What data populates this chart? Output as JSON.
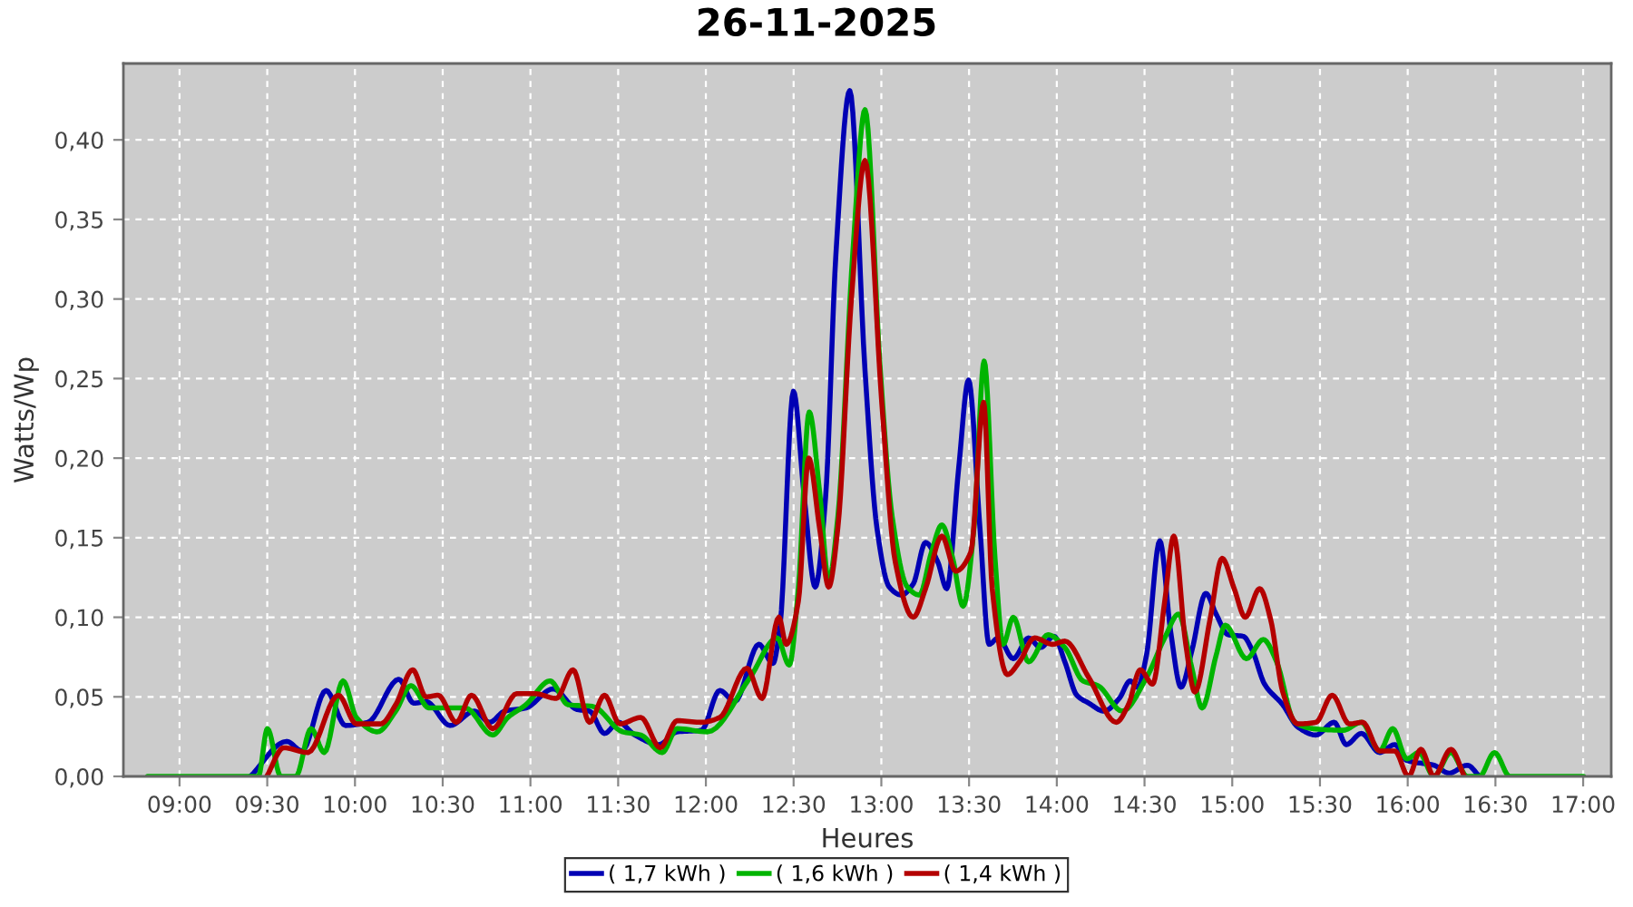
{
  "chart_data": {
    "type": "line",
    "title": "26-11-2025",
    "xlabel": "Heures",
    "ylabel": "Watts/Wp",
    "xlim": [
      8.68,
      17.16
    ],
    "xticks": [
      {
        "value": 9,
        "label": "09:00"
      },
      {
        "value": 9.5,
        "label": "09:30"
      },
      {
        "value": 10,
        "label": "10:00"
      },
      {
        "value": 10.5,
        "label": "10:30"
      },
      {
        "value": 11,
        "label": "11:00"
      },
      {
        "value": 11.5,
        "label": "11:30"
      },
      {
        "value": 12,
        "label": "12:00"
      },
      {
        "value": 12.5,
        "label": "12:30"
      },
      {
        "value": 13,
        "label": "13:00"
      },
      {
        "value": 13.5,
        "label": "13:30"
      },
      {
        "value": 14,
        "label": "14:00"
      },
      {
        "value": 14.5,
        "label": "14:30"
      },
      {
        "value": 15,
        "label": "15:00"
      },
      {
        "value": 15.5,
        "label": "15:30"
      },
      {
        "value": 16,
        "label": "16:00"
      },
      {
        "value": 16.5,
        "label": "16:30"
      },
      {
        "value": 17,
        "label": "17:00"
      }
    ],
    "ylim": [
      0,
      0.448
    ],
    "yticks": [
      {
        "value": 0,
        "label": "0,00"
      },
      {
        "value": 0.05,
        "label": "0,05"
      },
      {
        "value": 0.1,
        "label": "0,10"
      },
      {
        "value": 0.15,
        "label": "0,15"
      },
      {
        "value": 0.2,
        "label": "0,20"
      },
      {
        "value": 0.25,
        "label": "0,25"
      },
      {
        "value": 0.3,
        "label": "0,30"
      },
      {
        "value": 0.35,
        "label": "0,35"
      },
      {
        "value": 0.4,
        "label": "0,40"
      }
    ],
    "grid": true,
    "legend": "bottom",
    "marker": "none",
    "line_style": "solid",
    "series": [
      {
        "name": "( 1,7 kWh )",
        "color": "#0000b4",
        "x": [
          9.404,
          9.611,
          9.698,
          9.835,
          9.946,
          10.074,
          10.25,
          10.335,
          10.405,
          10.542,
          10.681,
          10.767,
          10.853,
          10.974,
          11.129,
          11.267,
          11.337,
          11.422,
          11.502,
          11.595,
          11.733,
          11.836,
          11.975,
          12.079,
          12.165,
          12.302,
          12.382,
          12.423,
          12.499,
          12.561,
          12.623,
          12.682,
          12.741,
          12.82,
          12.907,
          12.975,
          13.045,
          13.114,
          13.182,
          13.252,
          13.321,
          13.373,
          13.441,
          13.497,
          13.562,
          13.614,
          13.666,
          13.752,
          13.839,
          13.907,
          13.984,
          14.046,
          14.114,
          14.183,
          14.269,
          14.356,
          14.418,
          14.46,
          14.511,
          14.587,
          14.649,
          14.708,
          14.77,
          14.849,
          14.908,
          14.977,
          15.063,
          15.115,
          15.184,
          15.288,
          15.374,
          15.477,
          15.581,
          15.65,
          15.736,
          15.84,
          15.926,
          15.995,
          16.15,
          16.236,
          16.34,
          16.409
        ],
        "values": [
          0,
          0.022,
          0.016,
          0.054,
          0.032,
          0.034,
          0.061,
          0.046,
          0.047,
          0.032,
          0.041,
          0.034,
          0.041,
          0.043,
          0.055,
          0.042,
          0.041,
          0.027,
          0.034,
          0.026,
          0.02,
          0.028,
          0.029,
          0.054,
          0.047,
          0.083,
          0.071,
          0.095,
          0.242,
          0.175,
          0.119,
          0.175,
          0.328,
          0.431,
          0.255,
          0.156,
          0.119,
          0.114,
          0.121,
          0.147,
          0.135,
          0.118,
          0.194,
          0.249,
          0.156,
          0.083,
          0.087,
          0.074,
          0.087,
          0.081,
          0.088,
          0.072,
          0.051,
          0.046,
          0.041,
          0.049,
          0.06,
          0.056,
          0.076,
          0.148,
          0.091,
          0.056,
          0.079,
          0.115,
          0.102,
          0.089,
          0.088,
          0.079,
          0.058,
          0.045,
          0.031,
          0.026,
          0.034,
          0.02,
          0.027,
          0.015,
          0.02,
          0.01,
          0.007,
          0.002,
          0.007,
          0
        ]
      },
      {
        "name": "( 1,6 kWh )",
        "color": "#00b400",
        "x": [
          8.818,
          9.335,
          9.449,
          9.501,
          9.577,
          9.663,
          9.75,
          9.825,
          9.932,
          10.008,
          10.128,
          10.232,
          10.319,
          10.422,
          10.629,
          10.785,
          10.871,
          10.974,
          11.112,
          11.215,
          11.354,
          11.526,
          11.629,
          11.751,
          11.836,
          12.009,
          12.251,
          12.406,
          12.475,
          12.527,
          12.589,
          12.648,
          12.7,
          12.752,
          12.838,
          12.907,
          12.993,
          13.062,
          13.148,
          13.217,
          13.286,
          13.345,
          13.407,
          13.466,
          13.528,
          13.586,
          13.648,
          13.694,
          13.752,
          13.839,
          13.95,
          14.046,
          14.149,
          14.235,
          14.373,
          14.511,
          14.615,
          14.694,
          14.77,
          14.828,
          14.908,
          14.96,
          15.081,
          15.177,
          15.253,
          15.356,
          15.46,
          15.633,
          15.736,
          15.84,
          15.915,
          15.995,
          16.064,
          16.15,
          16.246,
          16.34,
          16.409,
          16.495,
          16.582,
          17.002
        ],
        "values": [
          0,
          0,
          0,
          0.03,
          0,
          0,
          0.03,
          0.015,
          0.06,
          0.037,
          0.028,
          0.041,
          0.057,
          0.043,
          0.043,
          0.026,
          0.037,
          0.045,
          0.06,
          0.045,
          0.044,
          0.028,
          0.026,
          0.015,
          0.03,
          0.028,
          0.062,
          0.087,
          0.07,
          0.118,
          0.229,
          0.179,
          0.123,
          0.163,
          0.33,
          0.419,
          0.257,
          0.163,
          0.119,
          0.114,
          0.141,
          0.158,
          0.137,
          0.107,
          0.156,
          0.261,
          0.137,
          0.083,
          0.1,
          0.072,
          0.089,
          0.081,
          0.06,
          0.057,
          0.041,
          0.062,
          0.087,
          0.102,
          0.068,
          0.043,
          0.076,
          0.095,
          0.074,
          0.086,
          0.072,
          0.034,
          0.03,
          0.029,
          0.034,
          0.016,
          0.03,
          0.011,
          0.015,
          0,
          0.015,
          0,
          0,
          0.015,
          0,
          0
        ]
      },
      {
        "name": "( 1,4 kWh )",
        "color": "#b40000",
        "x": [
          9.497,
          9.594,
          9.732,
          9.905,
          10.008,
          10.146,
          10.232,
          10.329,
          10.405,
          10.474,
          10.578,
          10.664,
          10.785,
          10.922,
          11.026,
          11.147,
          11.243,
          11.337,
          11.422,
          11.509,
          11.629,
          11.74,
          11.836,
          11.975,
          12.079,
          12.234,
          12.32,
          12.416,
          12.458,
          12.527,
          12.586,
          12.648,
          12.7,
          12.752,
          12.83,
          12.907,
          13.003,
          13.079,
          13.182,
          13.252,
          13.345,
          13.424,
          13.51,
          13.583,
          13.632,
          13.718,
          13.787,
          13.873,
          13.976,
          14.046,
          14.183,
          14.339,
          14.408,
          14.476,
          14.546,
          14.615,
          14.667,
          14.735,
          14.787,
          14.874,
          14.942,
          15.011,
          15.074,
          15.156,
          15.218,
          15.288,
          15.374,
          15.477,
          15.57,
          15.667,
          15.743,
          15.84,
          15.926,
          16.005,
          16.075,
          16.15,
          16.246,
          16.323
        ],
        "values": [
          0,
          0.018,
          0.015,
          0.051,
          0.033,
          0.033,
          0.045,
          0.067,
          0.05,
          0.051,
          0.034,
          0.051,
          0.03,
          0.052,
          0.052,
          0.049,
          0.067,
          0.034,
          0.051,
          0.033,
          0.037,
          0.018,
          0.035,
          0.034,
          0.037,
          0.068,
          0.049,
          0.1,
          0.083,
          0.11,
          0.2,
          0.156,
          0.119,
          0.156,
          0.301,
          0.387,
          0.234,
          0.135,
          0.1,
          0.118,
          0.151,
          0.129,
          0.141,
          0.235,
          0.118,
          0.064,
          0.072,
          0.087,
          0.083,
          0.085,
          0.062,
          0.034,
          0.045,
          0.067,
          0.058,
          0.11,
          0.151,
          0.083,
          0.053,
          0.099,
          0.137,
          0.118,
          0.1,
          0.118,
          0.099,
          0.053,
          0.033,
          0.034,
          0.051,
          0.033,
          0.034,
          0.016,
          0.016,
          0,
          0.017,
          0,
          0.017,
          0
        ]
      }
    ]
  }
}
